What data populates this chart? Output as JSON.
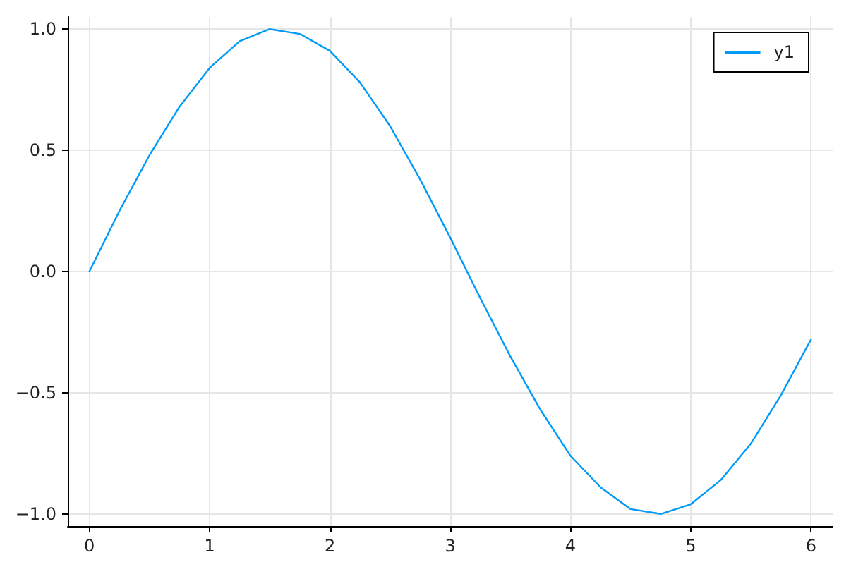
{
  "chart_data": {
    "type": "line",
    "x": [
      0,
      0.25,
      0.5,
      0.75,
      1,
      1.25,
      1.5,
      1.75,
      2,
      2.25,
      2.5,
      2.75,
      3,
      3.25,
      3.5,
      3.75,
      4,
      4.25,
      4.5,
      4.75,
      5,
      5.25,
      5.5,
      5.75,
      6
    ],
    "series": [
      {
        "name": "y1",
        "color": "#009af9",
        "values": [
          0,
          0.25,
          0.48,
          0.68,
          0.84,
          0.95,
          1.0,
          0.98,
          0.91,
          0.78,
          0.6,
          0.38,
          0.14,
          -0.11,
          -0.35,
          -0.57,
          -0.76,
          -0.89,
          -0.98,
          -1.0,
          -0.96,
          -0.86,
          -0.71,
          -0.51,
          -0.28
        ]
      }
    ],
    "xlim": [
      -0.18,
      6.18
    ],
    "xticks": [
      0,
      1,
      2,
      3,
      4,
      5,
      6
    ],
    "ylim": [
      -1.05,
      1.05
    ],
    "yticks": [
      {
        "value": -1,
        "label": "−1.0"
      },
      {
        "value": -0.5,
        "label": "−0.5"
      },
      {
        "value": 0,
        "label": "0.0"
      },
      {
        "value": 0.5,
        "label": "0.5"
      },
      {
        "value": 1,
        "label": "1.0"
      }
    ],
    "grid": true,
    "legend": "top right",
    "marker": "none",
    "line_style": "solid"
  }
}
